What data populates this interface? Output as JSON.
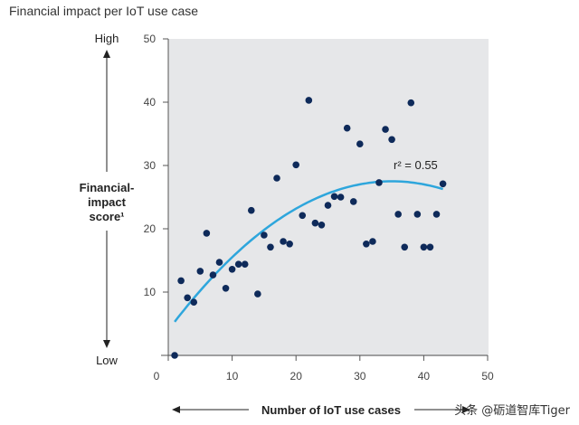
{
  "chart_data": {
    "type": "scatter",
    "title": "Financial impact per IoT use case",
    "xlabel": "Number of IoT use cases",
    "ylabel": "Financial-impact score¹",
    "ylabel_lines": [
      "Financial-",
      "impact",
      "score¹"
    ],
    "y_high_label": "High",
    "y_low_label": "Low",
    "xlim": [
      0,
      50
    ],
    "ylim": [
      0,
      50
    ],
    "x_ticks": [
      0,
      10,
      20,
      30,
      40,
      50
    ],
    "y_ticks": [
      10,
      20,
      30,
      40,
      50
    ],
    "grid": false,
    "points": [
      [
        1,
        0
      ],
      [
        2,
        11.8
      ],
      [
        3,
        9.1
      ],
      [
        4,
        8.4
      ],
      [
        5,
        13.3
      ],
      [
        6,
        19.3
      ],
      [
        7,
        12.7
      ],
      [
        8,
        14.7
      ],
      [
        9,
        10.6
      ],
      [
        10,
        13.6
      ],
      [
        11,
        14.4
      ],
      [
        12,
        14.4
      ],
      [
        13,
        22.9
      ],
      [
        14,
        9.7
      ],
      [
        15,
        19
      ],
      [
        16,
        17.1
      ],
      [
        17,
        28
      ],
      [
        18,
        18
      ],
      [
        19,
        17.6
      ],
      [
        20,
        30.1
      ],
      [
        21,
        22.1
      ],
      [
        22,
        40.3
      ],
      [
        23,
        20.9
      ],
      [
        24,
        20.6
      ],
      [
        25,
        23.7
      ],
      [
        26,
        25.1
      ],
      [
        27,
        25
      ],
      [
        28,
        35.9
      ],
      [
        29,
        24.3
      ],
      [
        30,
        33.4
      ],
      [
        31,
        17.6
      ],
      [
        32,
        18
      ],
      [
        33,
        27.3
      ],
      [
        34,
        35.7
      ],
      [
        35,
        34.1
      ],
      [
        36,
        22.3
      ],
      [
        37,
        17.1
      ],
      [
        38,
        39.9
      ],
      [
        39,
        22.3
      ],
      [
        40,
        17.1
      ],
      [
        41,
        17.1
      ],
      [
        42,
        22.3
      ],
      [
        43,
        27.1
      ]
    ],
    "trendline": {
      "type": "quadratic",
      "vertex_x": 35,
      "vertex_y": 27.5,
      "a": -0.0192,
      "x_range": [
        1,
        43
      ],
      "label": "r² = 0.55"
    },
    "colors": {
      "point": "#0e2a5a",
      "trend": "#2ea6dc",
      "plot_bg": "#e6e7e9"
    }
  },
  "watermark": "头条 @砺道智库Tiger"
}
